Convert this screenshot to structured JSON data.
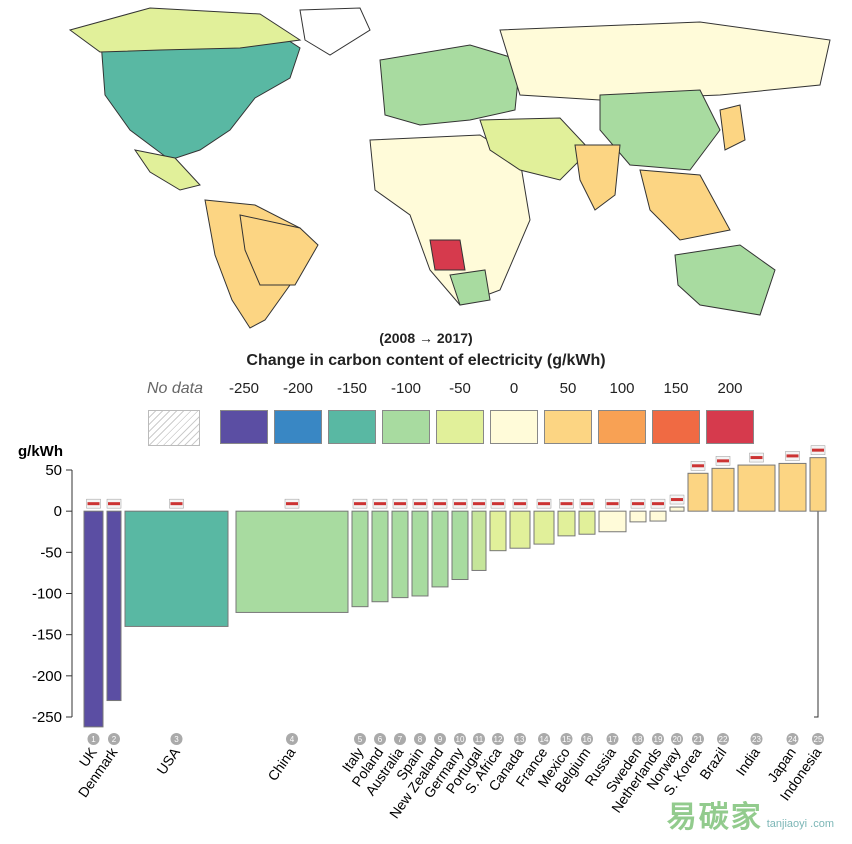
{
  "map_section": {
    "period_label": "(2008 → 2017)",
    "legend_title": "Change in carbon content of electricity (g/kWh)",
    "no_data_label": "No data",
    "scale": [
      {
        "label": "-250",
        "color": "#5b4ea3"
      },
      {
        "label": "-200",
        "color": "#3987c4"
      },
      {
        "label": "-150",
        "color": "#59b8a3"
      },
      {
        "label": "-100",
        "color": "#a8dba0"
      },
      {
        "label": "-50",
        "color": "#e1f09a"
      },
      {
        "label": "0",
        "color": "#fffbd9"
      },
      {
        "label": "50",
        "color": "#fcd583"
      },
      {
        "label": "100",
        "color": "#f8a154"
      },
      {
        "label": "150",
        "color": "#f06a43"
      },
      {
        "label": "200",
        "color": "#d63a4d"
      }
    ]
  },
  "chart_data": {
    "type": "bar",
    "title": "Change in carbon content of electricity (g/kWh)",
    "ylabel": "g/kWh",
    "xlabel": "",
    "ylim": [
      -250,
      50
    ],
    "yticks": [
      50,
      0,
      -50,
      -100,
      -150,
      -200,
      -250
    ],
    "bar_width_note": "variable width bars",
    "categories": [
      "UK",
      "Denmark",
      "USA",
      "China",
      "Italy",
      "Poland",
      "Australia",
      "Spain",
      "New Zealand",
      "Germany",
      "Portugal",
      "S. Africa",
      "Canada",
      "France",
      "Mexico",
      "Belgium",
      "Russia",
      "Sweden",
      "Netherlands",
      "Norway",
      "S. Korea",
      "Brazil",
      "India",
      "Japan",
      "Indonesia"
    ],
    "ranks": [
      "1",
      "2",
      "3",
      "4",
      "5",
      "6",
      "7",
      "8",
      "9",
      "10",
      "11",
      "12",
      "13",
      "14",
      "15",
      "16",
      "17",
      "18",
      "19",
      "20",
      "21",
      "22",
      "23",
      "24",
      "25"
    ],
    "values": [
      -262,
      -230,
      -140,
      -123,
      -116,
      -110,
      -105,
      -103,
      -92,
      -83,
      -72,
      -48,
      -45,
      -40,
      -30,
      -28,
      -25,
      -13,
      -12,
      5,
      46,
      52,
      56,
      58,
      65
    ],
    "colors": [
      "#5b4ea3",
      "#5b4ea3",
      "#59b8a3",
      "#a8dba0",
      "#a8dba0",
      "#a8dba0",
      "#a8dba0",
      "#a8dba0",
      "#a8dba0",
      "#a8dba0",
      "#c5e59a",
      "#e1f09a",
      "#e1f09a",
      "#e1f09a",
      "#e1f09a",
      "#e1f09a",
      "#fffbd9",
      "#fffbd9",
      "#fffbd9",
      "#fffbd9",
      "#fcd583",
      "#fcd583",
      "#fcd583",
      "#fcd583",
      "#fcd583"
    ],
    "flags": [
      "gb-flag",
      "dk-flag",
      "us-flag",
      "cn-flag",
      "it-flag",
      "pl-flag",
      "au-flag",
      "es-flag",
      "nz-flag",
      "de-flag",
      "pt-flag",
      "za-flag",
      "ca-flag",
      "fr-flag",
      "mx-flag",
      "be-flag",
      "ru-flag",
      "se-flag",
      "nl-flag",
      "no-flag",
      "kr-flag",
      "br-flag",
      "in-flag",
      "jp-flag",
      "id-flag"
    ]
  },
  "watermark": {
    "text": "易碳家",
    "site": "tanjiaoyi .com"
  }
}
